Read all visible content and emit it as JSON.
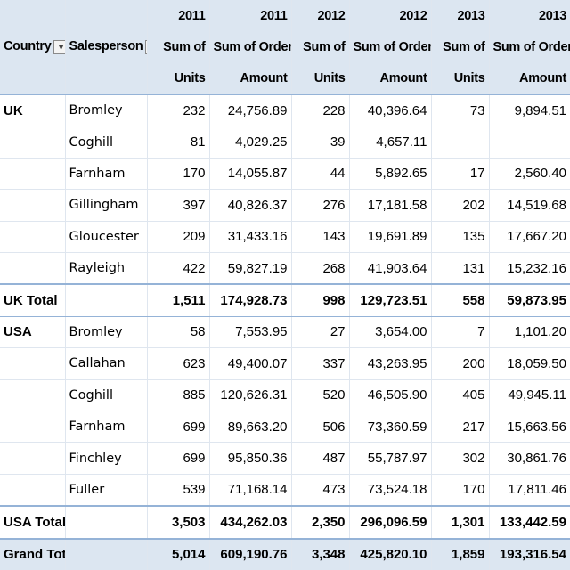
{
  "headers": {
    "country": "Country",
    "salesperson": "Salesperson",
    "years": [
      "2011",
      "2011",
      "2012",
      "2012",
      "2013",
      "2013"
    ],
    "line2": [
      "Sum of",
      "Sum of Order",
      "Sum of",
      "Sum of Order",
      "Sum of",
      "Sum of Order"
    ],
    "line3": [
      "Units",
      "Amount",
      "Units",
      "Amount",
      "Units",
      "Amount"
    ]
  },
  "groups": [
    {
      "country": "UK",
      "rows": [
        {
          "salesperson": "Bromley",
          "values": [
            "232",
            "24,756.89",
            "228",
            "40,396.64",
            "73",
            "9,894.51"
          ]
        },
        {
          "salesperson": "Coghill",
          "values": [
            "81",
            "4,029.25",
            "39",
            "4,657.11",
            "",
            ""
          ]
        },
        {
          "salesperson": "Farnham",
          "values": [
            "170",
            "14,055.87",
            "44",
            "5,892.65",
            "17",
            "2,560.40"
          ]
        },
        {
          "salesperson": "Gillingham",
          "values": [
            "397",
            "40,826.37",
            "276",
            "17,181.58",
            "202",
            "14,519.68"
          ]
        },
        {
          "salesperson": "Gloucester",
          "values": [
            "209",
            "31,433.16",
            "143",
            "19,691.89",
            "135",
            "17,667.20"
          ]
        },
        {
          "salesperson": "Rayleigh",
          "values": [
            "422",
            "59,827.19",
            "268",
            "41,903.64",
            "131",
            "15,232.16"
          ]
        }
      ],
      "total_label": "UK Total",
      "total_values": [
        "1,511",
        "174,928.73",
        "998",
        "129,723.51",
        "558",
        "59,873.95"
      ]
    },
    {
      "country": "USA",
      "rows": [
        {
          "salesperson": "Bromley",
          "values": [
            "58",
            "7,553.95",
            "27",
            "3,654.00",
            "7",
            "1,101.20"
          ]
        },
        {
          "salesperson": "Callahan",
          "values": [
            "623",
            "49,400.07",
            "337",
            "43,263.95",
            "200",
            "18,059.50"
          ]
        },
        {
          "salesperson": "Coghill",
          "values": [
            "885",
            "120,626.31",
            "520",
            "46,505.90",
            "405",
            "49,945.11"
          ]
        },
        {
          "salesperson": "Farnham",
          "values": [
            "699",
            "89,663.20",
            "506",
            "73,360.59",
            "217",
            "15,663.56"
          ]
        },
        {
          "salesperson": "Finchley",
          "values": [
            "699",
            "95,850.36",
            "487",
            "55,787.97",
            "302",
            "30,861.76"
          ]
        },
        {
          "salesperson": "Fuller",
          "values": [
            "539",
            "71,168.14",
            "473",
            "73,524.18",
            "170",
            "17,811.46"
          ]
        }
      ],
      "total_label": "USA Total",
      "total_values": [
        "3,503",
        "434,262.03",
        "2,350",
        "296,096.59",
        "1,301",
        "133,442.59"
      ]
    }
  ],
  "grand_total": {
    "label": "Grand Total",
    "values": [
      "5,014",
      "609,190.76",
      "3,348",
      "425,820.10",
      "1,859",
      "193,316.54"
    ]
  },
  "icons": {
    "country_filter": "filter-dropdown-icon",
    "salesperson_filter": "filter-dropdown-icon"
  },
  "colors": {
    "header_fill": "#dce6f1",
    "accent_border": "#95b3d7"
  }
}
